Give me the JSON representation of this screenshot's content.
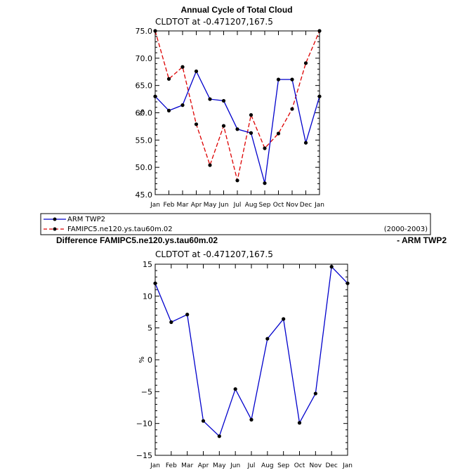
{
  "chart_data": [
    {
      "type": "line",
      "title": "Annual Cycle of Total Cloud",
      "subtitle": "CLDTOT at -0.471207,167.5",
      "xlabel": "",
      "ylabel": "%",
      "categories": [
        "Jan",
        "Feb",
        "Mar",
        "Apr",
        "May",
        "Jun",
        "Jul",
        "Aug",
        "Sep",
        "Oct",
        "Nov",
        "Dec",
        "Jan"
      ],
      "ylim": [
        45,
        75
      ],
      "yticks": [
        "45.0",
        "50.0",
        "55.0",
        "60.0",
        "65.0",
        "70.0",
        "75.0"
      ],
      "series": [
        {
          "name": "ARM TWP2",
          "color": "#0000cc",
          "style": "solid",
          "values": [
            63.0,
            60.4,
            61.4,
            67.6,
            62.5,
            62.2,
            57.0,
            56.3,
            47.1,
            66.1,
            66.1,
            54.5,
            63.0
          ]
        },
        {
          "name": "FAMIPC5.ne120.ys.tau60m.02",
          "color": "#dd0000",
          "style": "dashed",
          "values": [
            75.0,
            66.2,
            68.4,
            57.9,
            50.4,
            57.6,
            47.6,
            59.6,
            53.5,
            56.2,
            60.7,
            69.1,
            75.0
          ]
        }
      ],
      "legend": {
        "entries": [
          "ARM TWP2",
          "FAMIPC5.ne120.ys.tau60m.02"
        ],
        "period": "(2000-2003)"
      }
    },
    {
      "type": "line",
      "title": "Difference FAMIPC5.ne120.ys.tau60m.02",
      "title_right": "- ARM TWP2",
      "subtitle": "CLDTOT at -0.471207,167.5",
      "xlabel": "",
      "ylabel": "%",
      "categories": [
        "Jan",
        "Feb",
        "Mar",
        "Apr",
        "May",
        "Jun",
        "Jul",
        "Aug",
        "Sep",
        "Oct",
        "Nov",
        "Dec",
        "Jan"
      ],
      "ylim": [
        -15,
        15
      ],
      "yticks": [
        "-15",
        "-10",
        "-5",
        "0",
        "5",
        "10",
        "15"
      ],
      "series": [
        {
          "name": "Difference",
          "color": "#0000cc",
          "style": "solid",
          "values": [
            12.0,
            5.9,
            7.1,
            -9.6,
            -12.0,
            -4.6,
            -9.4,
            3.3,
            6.4,
            -9.9,
            -5.3,
            14.6,
            12.0
          ]
        }
      ]
    }
  ]
}
